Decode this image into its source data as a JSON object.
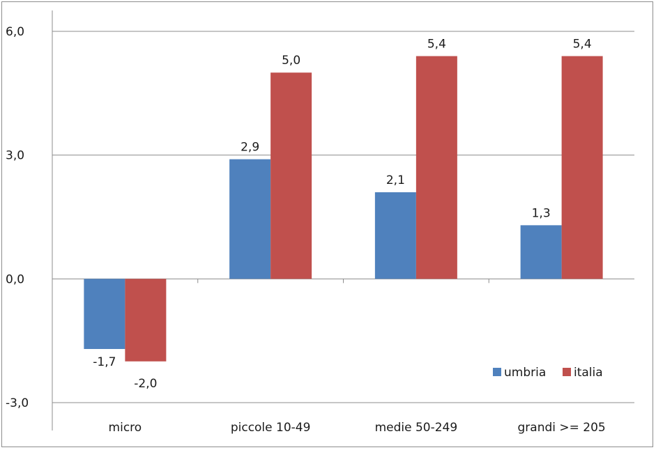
{
  "chart_data": {
    "type": "bar",
    "categories": [
      "micro",
      "piccole 10-49",
      "medie 50-249",
      "grandi >= 205"
    ],
    "series": [
      {
        "name": "umbria",
        "color": "#4f81bd",
        "values": [
          -1.7,
          2.9,
          2.1,
          1.3
        ],
        "value_labels": [
          "-1,7",
          "2,9",
          "2,1",
          "1,3"
        ]
      },
      {
        "name": "italia",
        "color": "#c0504d",
        "values": [
          -2.0,
          5.0,
          5.4,
          5.4
        ],
        "value_labels": [
          "-2,0",
          "5,0",
          "5,4",
          "5,4"
        ]
      }
    ],
    "ylim": [
      -3,
      6
    ],
    "yticks": [
      -3,
      0,
      3,
      6
    ],
    "ytick_labels": [
      "-3,0",
      "0,0",
      "3,0",
      "6,0"
    ],
    "grid": true,
    "legend_position": "bottom-right",
    "title": "",
    "xlabel": "",
    "ylabel": ""
  }
}
